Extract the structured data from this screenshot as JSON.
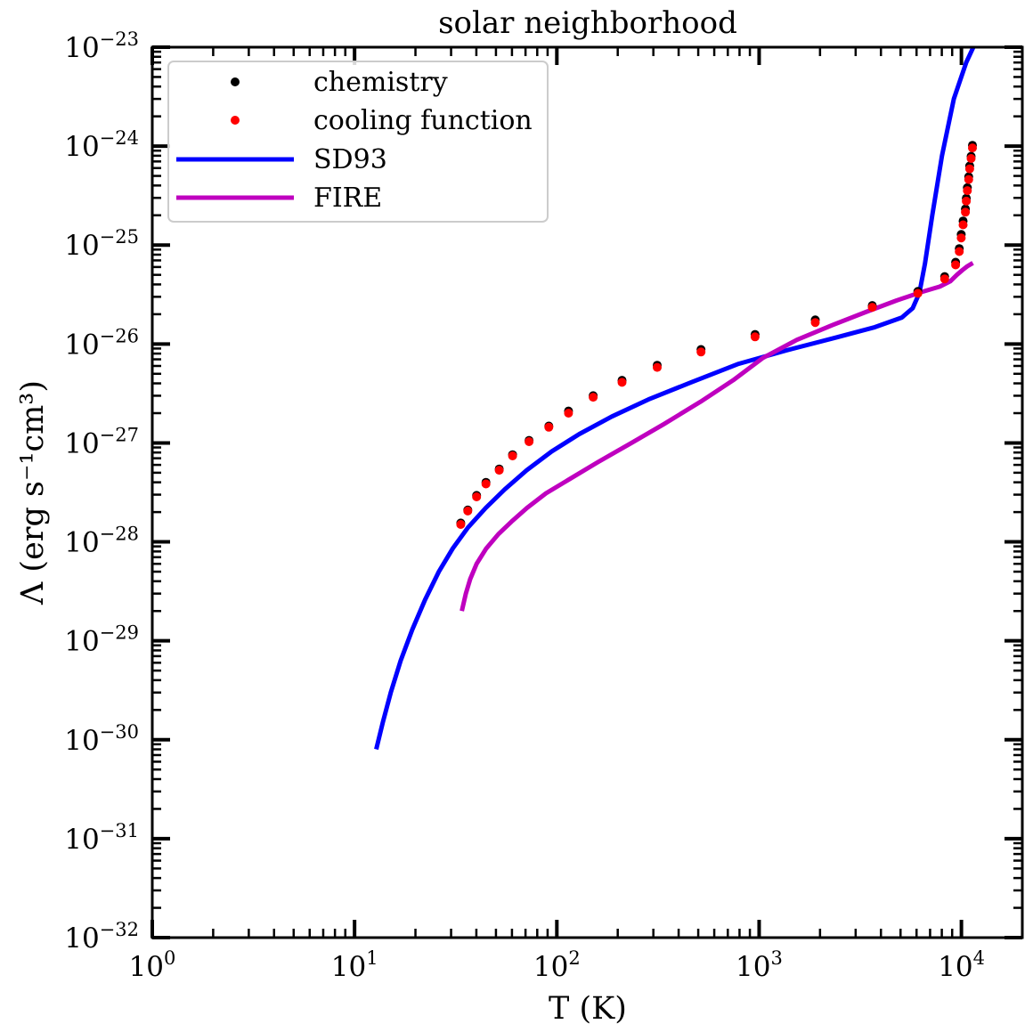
{
  "chart_data": {
    "type": "line",
    "title": "solar neighborhood",
    "xlabel": "T (K)",
    "ylabel": "Λ (erg s⁻¹cm³)",
    "xscale": "log",
    "yscale": "log",
    "xlim": [
      1,
      20000
    ],
    "ylim": [
      1e-32,
      1e-23
    ],
    "grid": false,
    "legend": "top-left",
    "x_ticks": [
      {
        "base": "10",
        "exp": "0"
      },
      {
        "base": "10",
        "exp": "1"
      },
      {
        "base": "10",
        "exp": "2"
      },
      {
        "base": "10",
        "exp": "3"
      },
      {
        "base": "10",
        "exp": "4"
      }
    ],
    "y_ticks": [
      {
        "base": "10",
        "exp": "−32"
      },
      {
        "base": "10",
        "exp": "−31"
      },
      {
        "base": "10",
        "exp": "−30"
      },
      {
        "base": "10",
        "exp": "−29"
      },
      {
        "base": "10",
        "exp": "−28"
      },
      {
        "base": "10",
        "exp": "−27"
      },
      {
        "base": "10",
        "exp": "−26"
      },
      {
        "base": "10",
        "exp": "−25"
      },
      {
        "base": "10",
        "exp": "−24"
      },
      {
        "base": "10",
        "exp": "−23"
      }
    ],
    "series": [
      {
        "name": "chemistry",
        "kind": "scatter",
        "color": "#000000",
        "x": [
          33.5,
          36.3,
          40.1,
          44.6,
          51.9,
          60.4,
          72.9,
          91.3,
          114.2,
          151.2,
          209.9,
          313.3,
          516.2,
          954.6,
          1894,
          3626,
          6093,
          8266,
          9356,
          9761,
          9982,
          10190,
          10460,
          10570,
          10700,
          10870,
          10990,
          11170,
          11340
        ],
        "y": [
          1.55e-28,
          2.1e-28,
          2.95e-28,
          4e-28,
          5.45e-28,
          7.6e-28,
          1.06e-27,
          1.48e-27,
          2.1e-27,
          3e-27,
          4.3e-27,
          6.1e-27,
          8.8e-27,
          1.25e-26,
          1.75e-26,
          2.45e-26,
          3.4e-26,
          4.8e-26,
          6.7e-26,
          9.2e-26,
          1.28e-25,
          1.75e-25,
          2.32e-25,
          2.97e-25,
          3.8e-25,
          4.9e-25,
          6.3e-25,
          7.9e-25,
          1.02e-24
        ]
      },
      {
        "name": "cooling function",
        "kind": "scatter",
        "color": "#ff0000",
        "x": [
          33.5,
          36.3,
          40.1,
          44.6,
          51.9,
          60.4,
          72.9,
          91.3,
          114.2,
          151.2,
          209.9,
          313.3,
          516.2,
          954.6,
          1894,
          3626,
          6093,
          8266,
          9356,
          9761,
          9982,
          10190,
          10460,
          10570,
          10700,
          10870,
          10990,
          11170,
          11340
        ],
        "y": [
          1.5e-28,
          2.05e-28,
          2.85e-28,
          3.85e-28,
          5.3e-28,
          7.4e-28,
          1.03e-27,
          1.44e-27,
          2e-27,
          2.9e-27,
          4.1e-27,
          5.8e-27,
          8.3e-27,
          1.18e-26,
          1.65e-26,
          2.35e-26,
          3.25e-26,
          4.55e-26,
          6.3e-26,
          8.6e-26,
          1.18e-25,
          1.6e-25,
          2.15e-25,
          2.78e-25,
          3.55e-25,
          4.6e-25,
          5.9e-25,
          7.5e-25,
          9.6e-25
        ]
      },
      {
        "name": "SD93",
        "kind": "line",
        "color": "#0000ff",
        "x": [
          12.8,
          13.8,
          15.1,
          16.9,
          19.3,
          22.3,
          26.1,
          30.6,
          36.4,
          44.5,
          55.3,
          70.9,
          94.3,
          129.1,
          186.9,
          283.7,
          460.6,
          791.9,
          1359,
          2354,
          3736,
          5075,
          5743,
          6203,
          6605,
          7176,
          8019,
          9176,
          10560,
          11450
        ],
        "y": [
          8e-31,
          1.5e-30,
          3e-30,
          6.3e-30,
          1.3e-29,
          2.6e-29,
          5e-29,
          8.6e-29,
          1.4e-28,
          2.2e-28,
          3.4e-28,
          5.3e-28,
          8.2e-28,
          1.23e-27,
          1.85e-27,
          2.75e-27,
          4.1e-27,
          6.3e-27,
          8.6e-27,
          1.15e-26,
          1.48e-26,
          1.85e-26,
          2.3e-26,
          3.3e-26,
          6.5e-26,
          2e-25,
          8e-25,
          3e-24,
          7e-24,
          1e-23
        ]
      },
      {
        "name": "FIRE",
        "kind": "line",
        "color": "#bf00bf",
        "x": [
          33.9,
          35.5,
          37.3,
          40.1,
          44.6,
          51.4,
          59.6,
          71.1,
          88.4,
          115.3,
          159.6,
          229.9,
          338.2,
          512.3,
          743.4,
          1040,
          1536,
          2298,
          3363,
          4776,
          6342,
          7815,
          8805,
          9491,
          10130,
          10680,
          11400
        ],
        "y": [
          2e-29,
          3e-29,
          4.2e-29,
          6e-29,
          8.5e-29,
          1.2e-28,
          1.6e-28,
          2.2e-28,
          3.1e-28,
          4.3e-28,
          6.4e-28,
          9.8e-28,
          1.55e-27,
          2.6e-27,
          4.3e-27,
          7.2e-27,
          1.1e-26,
          1.55e-26,
          2.1e-26,
          2.75e-26,
          3.35e-26,
          3.8e-26,
          4.3e-26,
          5e-26,
          5.6e-26,
          6.1e-26,
          6.6e-26
        ]
      }
    ]
  }
}
